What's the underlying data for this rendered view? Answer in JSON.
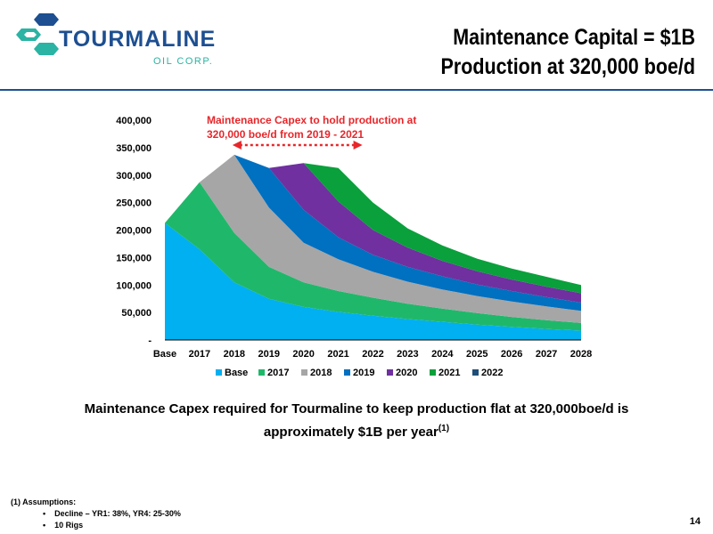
{
  "logo": {
    "name": "TOURMALINE",
    "sub": "OIL CORP."
  },
  "title": {
    "line1": "Maintenance Capital = $1B",
    "line2": "Production at 320,000 boe/d"
  },
  "chart_data": {
    "type": "area",
    "stacked": true,
    "categories": [
      "Base",
      "2017",
      "2018",
      "2019",
      "2020",
      "2021",
      "2022",
      "2023",
      "2024",
      "2025",
      "2026",
      "2027",
      "2028"
    ],
    "y_tick_labels": [
      "-",
      "50,000",
      "100,000",
      "150,000",
      "200,000",
      "250,000",
      "300,000",
      "350,000",
      "400,000"
    ],
    "ylim": [
      0,
      400000
    ],
    "legend_position": "bottom",
    "series": [
      {
        "name": "Base",
        "color": "#00b0f0",
        "values": [
          213000,
          165000,
          105000,
          75000,
          60000,
          51000,
          44000,
          38000,
          33000,
          28000,
          24000,
          20000,
          17000
        ]
      },
      {
        "name": "2017",
        "color": "#1fb86a",
        "values": [
          null,
          122000,
          90000,
          58000,
          45000,
          38000,
          33000,
          28000,
          24000,
          21000,
          18000,
          16000,
          14000
        ]
      },
      {
        "name": "2018",
        "color": "#a6a6a6",
        "values": [
          null,
          null,
          142000,
          108000,
          72000,
          58000,
          47000,
          40000,
          35000,
          31000,
          28000,
          25000,
          22000
        ]
      },
      {
        "name": "2019",
        "color": "#0070c0",
        "values": [
          null,
          null,
          null,
          72000,
          60000,
          40000,
          31000,
          27000,
          24000,
          21000,
          19000,
          17000,
          15000
        ]
      },
      {
        "name": "2020",
        "color": "#7030a0",
        "values": [
          null,
          null,
          null,
          null,
          85000,
          65000,
          45000,
          35000,
          28000,
          24000,
          21000,
          19000,
          17000
        ]
      },
      {
        "name": "2021",
        "color": "#0aa03c",
        "values": [
          null,
          null,
          null,
          null,
          null,
          61000,
          50000,
          35000,
          28000,
          23000,
          20000,
          18000,
          15000
        ]
      },
      {
        "name": "2022",
        "color": "#1f4e79",
        "values": [
          null,
          null,
          null,
          null,
          null,
          null,
          null,
          null,
          null,
          null,
          null,
          null,
          null
        ]
      }
    ],
    "annotation": {
      "text_line1": "Maintenance Capex to hold production at",
      "text_line2": "320,000 boe/d from 2019 - 2021",
      "arrow_from": "2018",
      "arrow_to": "2021",
      "arrow_level": 333000
    }
  },
  "caption": {
    "line1": "Maintenance Capex required for Tourmaline to keep  production flat at 320,000boe/d is",
    "line2": "approximately $1B per year",
    "sup": "(1)"
  },
  "footnote": {
    "title": "(1) Assumptions:",
    "items": [
      "Decline – YR1: 38%, YR4: 25-30%",
      "10 Rigs"
    ]
  },
  "page_number": "14",
  "colors": {
    "rule": "#1d4f91",
    "annotation": "#e8262a",
    "logo_blue": "#1d4f91",
    "logo_green": "#2bb3a3"
  }
}
